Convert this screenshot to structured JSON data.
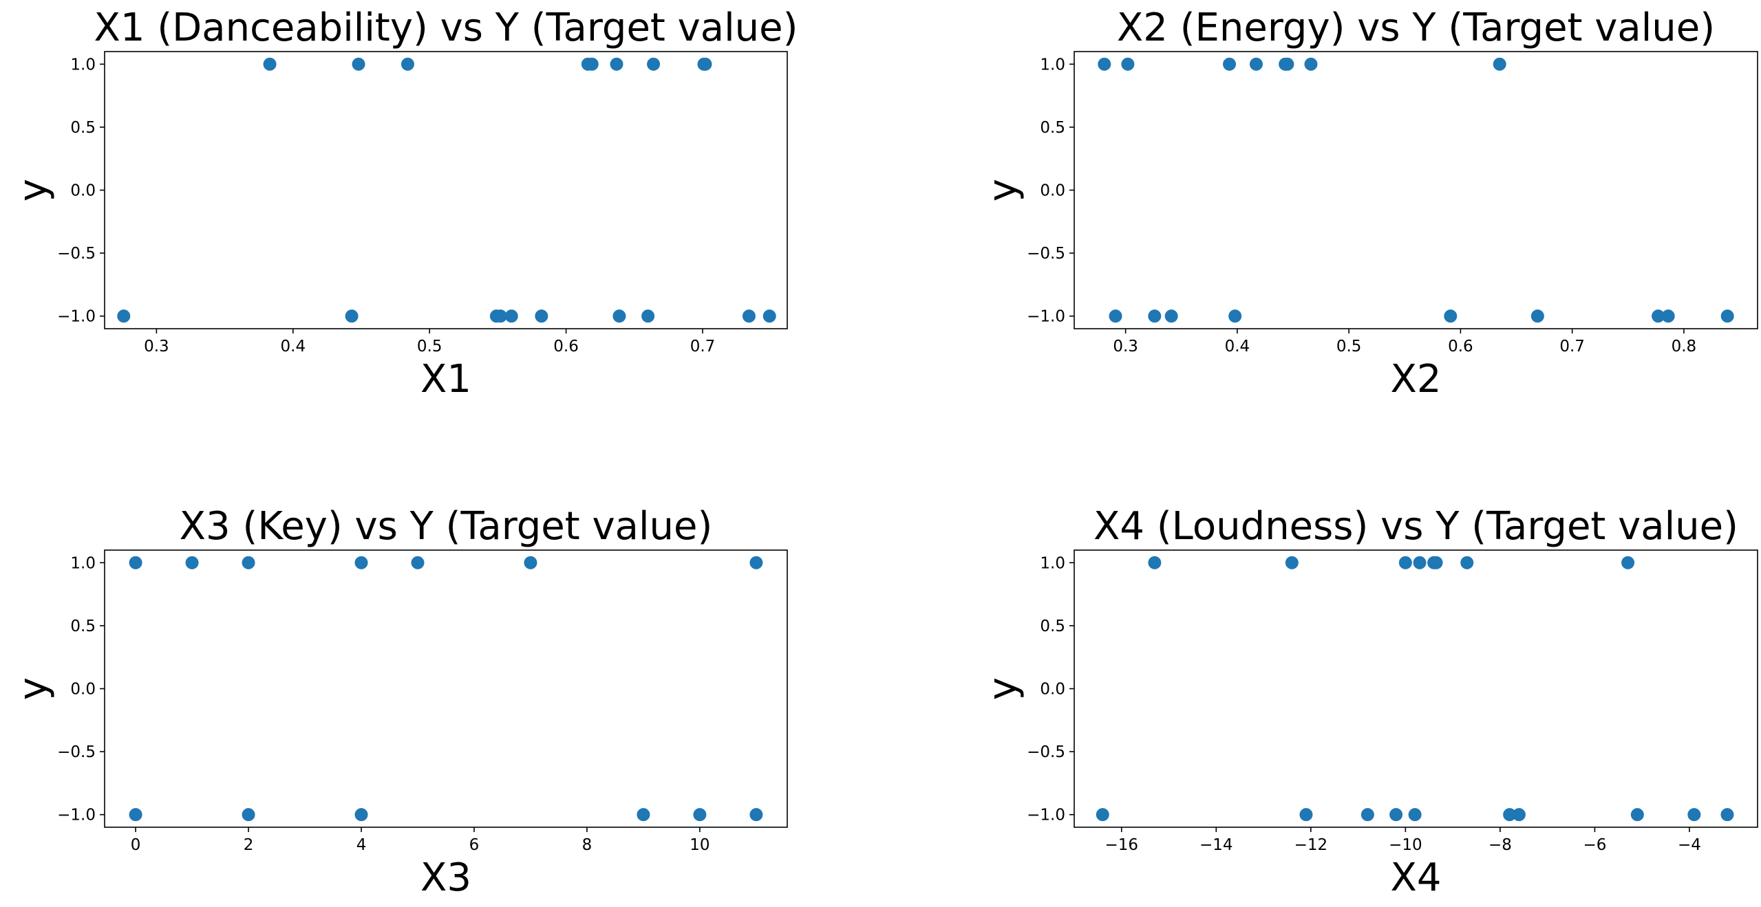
{
  "chart_data": [
    {
      "type": "scatter",
      "title": "X1 (Danceability) vs Y (Target value)",
      "xlabel": "X1",
      "ylabel": "y",
      "xlim": [
        0.262,
        0.762
      ],
      "ylim": [
        -1.1,
        1.1
      ],
      "xticks": [
        0.3,
        0.4,
        0.5,
        0.6,
        0.7
      ],
      "xticklabels": [
        "0.3",
        "0.4",
        "0.5",
        "0.6",
        "0.7"
      ],
      "yticks": [
        1.0,
        0.5,
        0.0,
        -0.5,
        -1.0
      ],
      "yticklabels": [
        "1.0",
        "0.5",
        "0.0",
        "−0.5",
        "−1.0"
      ],
      "color": "#1f77b4",
      "grid": false,
      "x": [
        0.383,
        0.448,
        0.484,
        0.616,
        0.619,
        0.637,
        0.664,
        0.701,
        0.702,
        0.276,
        0.443,
        0.549,
        0.552,
        0.56,
        0.582,
        0.639,
        0.66,
        0.734,
        0.749
      ],
      "y": [
        1,
        1,
        1,
        1,
        1,
        1,
        1,
        1,
        1,
        -1,
        -1,
        -1,
        -1,
        -1,
        -1,
        -1,
        -1,
        -1,
        -1
      ]
    },
    {
      "type": "scatter",
      "title": "X2 (Energy) vs Y (Target value)",
      "xlabel": "X2",
      "ylabel": "y",
      "xlim": [
        0.254,
        0.866
      ],
      "ylim": [
        -1.1,
        1.1
      ],
      "xticks": [
        0.3,
        0.4,
        0.5,
        0.6,
        0.7,
        0.8
      ],
      "xticklabels": [
        "0.3",
        "0.4",
        "0.5",
        "0.6",
        "0.7",
        "0.8"
      ],
      "yticks": [
        1.0,
        0.5,
        0.0,
        -0.5,
        -1.0
      ],
      "yticklabels": [
        "1.0",
        "0.5",
        "0.0",
        "−0.5",
        "−1.0"
      ],
      "color": "#1f77b4",
      "grid": false,
      "x": [
        0.281,
        0.302,
        0.393,
        0.417,
        0.443,
        0.445,
        0.466,
        0.635,
        0.291,
        0.326,
        0.341,
        0.398,
        0.591,
        0.669,
        0.777,
        0.786,
        0.839
      ],
      "y": [
        1,
        1,
        1,
        1,
        1,
        1,
        1,
        1,
        -1,
        -1,
        -1,
        -1,
        -1,
        -1,
        -1,
        -1,
        -1
      ]
    },
    {
      "type": "scatter",
      "title": "X3 (Key) vs Y (Target value)",
      "xlabel": "X3",
      "ylabel": "y",
      "xlim": [
        -0.55,
        11.55
      ],
      "ylim": [
        -1.1,
        1.1
      ],
      "xticks": [
        0,
        2,
        4,
        6,
        8,
        10
      ],
      "xticklabels": [
        "0",
        "2",
        "4",
        "6",
        "8",
        "10"
      ],
      "yticks": [
        1.0,
        0.5,
        0.0,
        -0.5,
        -1.0
      ],
      "yticklabels": [
        "1.0",
        "0.5",
        "0.0",
        "−0.5",
        "−1.0"
      ],
      "color": "#1f77b4",
      "grid": false,
      "x": [
        0,
        1,
        2,
        4,
        5,
        7,
        11,
        0,
        2,
        4,
        9,
        10,
        11
      ],
      "y": [
        1,
        1,
        1,
        1,
        1,
        1,
        1,
        -1,
        -1,
        -1,
        -1,
        -1,
        -1
      ]
    },
    {
      "type": "scatter",
      "title": "X4 (Loudness) vs Y (Target value)",
      "xlabel": "X4",
      "ylabel": "y",
      "xlim": [
        -17.0,
        -2.56
      ],
      "ylim": [
        -1.1,
        1.1
      ],
      "xticks": [
        -16,
        -14,
        -12,
        -10,
        -8,
        -6,
        -4
      ],
      "xticklabels": [
        "−16",
        "−14",
        "−12",
        "−10",
        "−8",
        "−6",
        "−4"
      ],
      "yticks": [
        1.0,
        0.5,
        0.0,
        -0.5,
        -1.0
      ],
      "yticklabels": [
        "1.0",
        "0.5",
        "0.0",
        "−0.5",
        "−1.0"
      ],
      "color": "#1f77b4",
      "grid": false,
      "x": [
        -15.3,
        -12.4,
        -10.0,
        -9.7,
        -9.4,
        -9.35,
        -8.7,
        -5.3,
        -16.4,
        -12.1,
        -10.8,
        -10.2,
        -9.8,
        -7.8,
        -7.6,
        -5.1,
        -3.9,
        -3.2
      ],
      "y": [
        1,
        1,
        1,
        1,
        1,
        1,
        1,
        1,
        -1,
        -1,
        -1,
        -1,
        -1,
        -1,
        -1,
        -1,
        -1,
        -1
      ]
    }
  ]
}
